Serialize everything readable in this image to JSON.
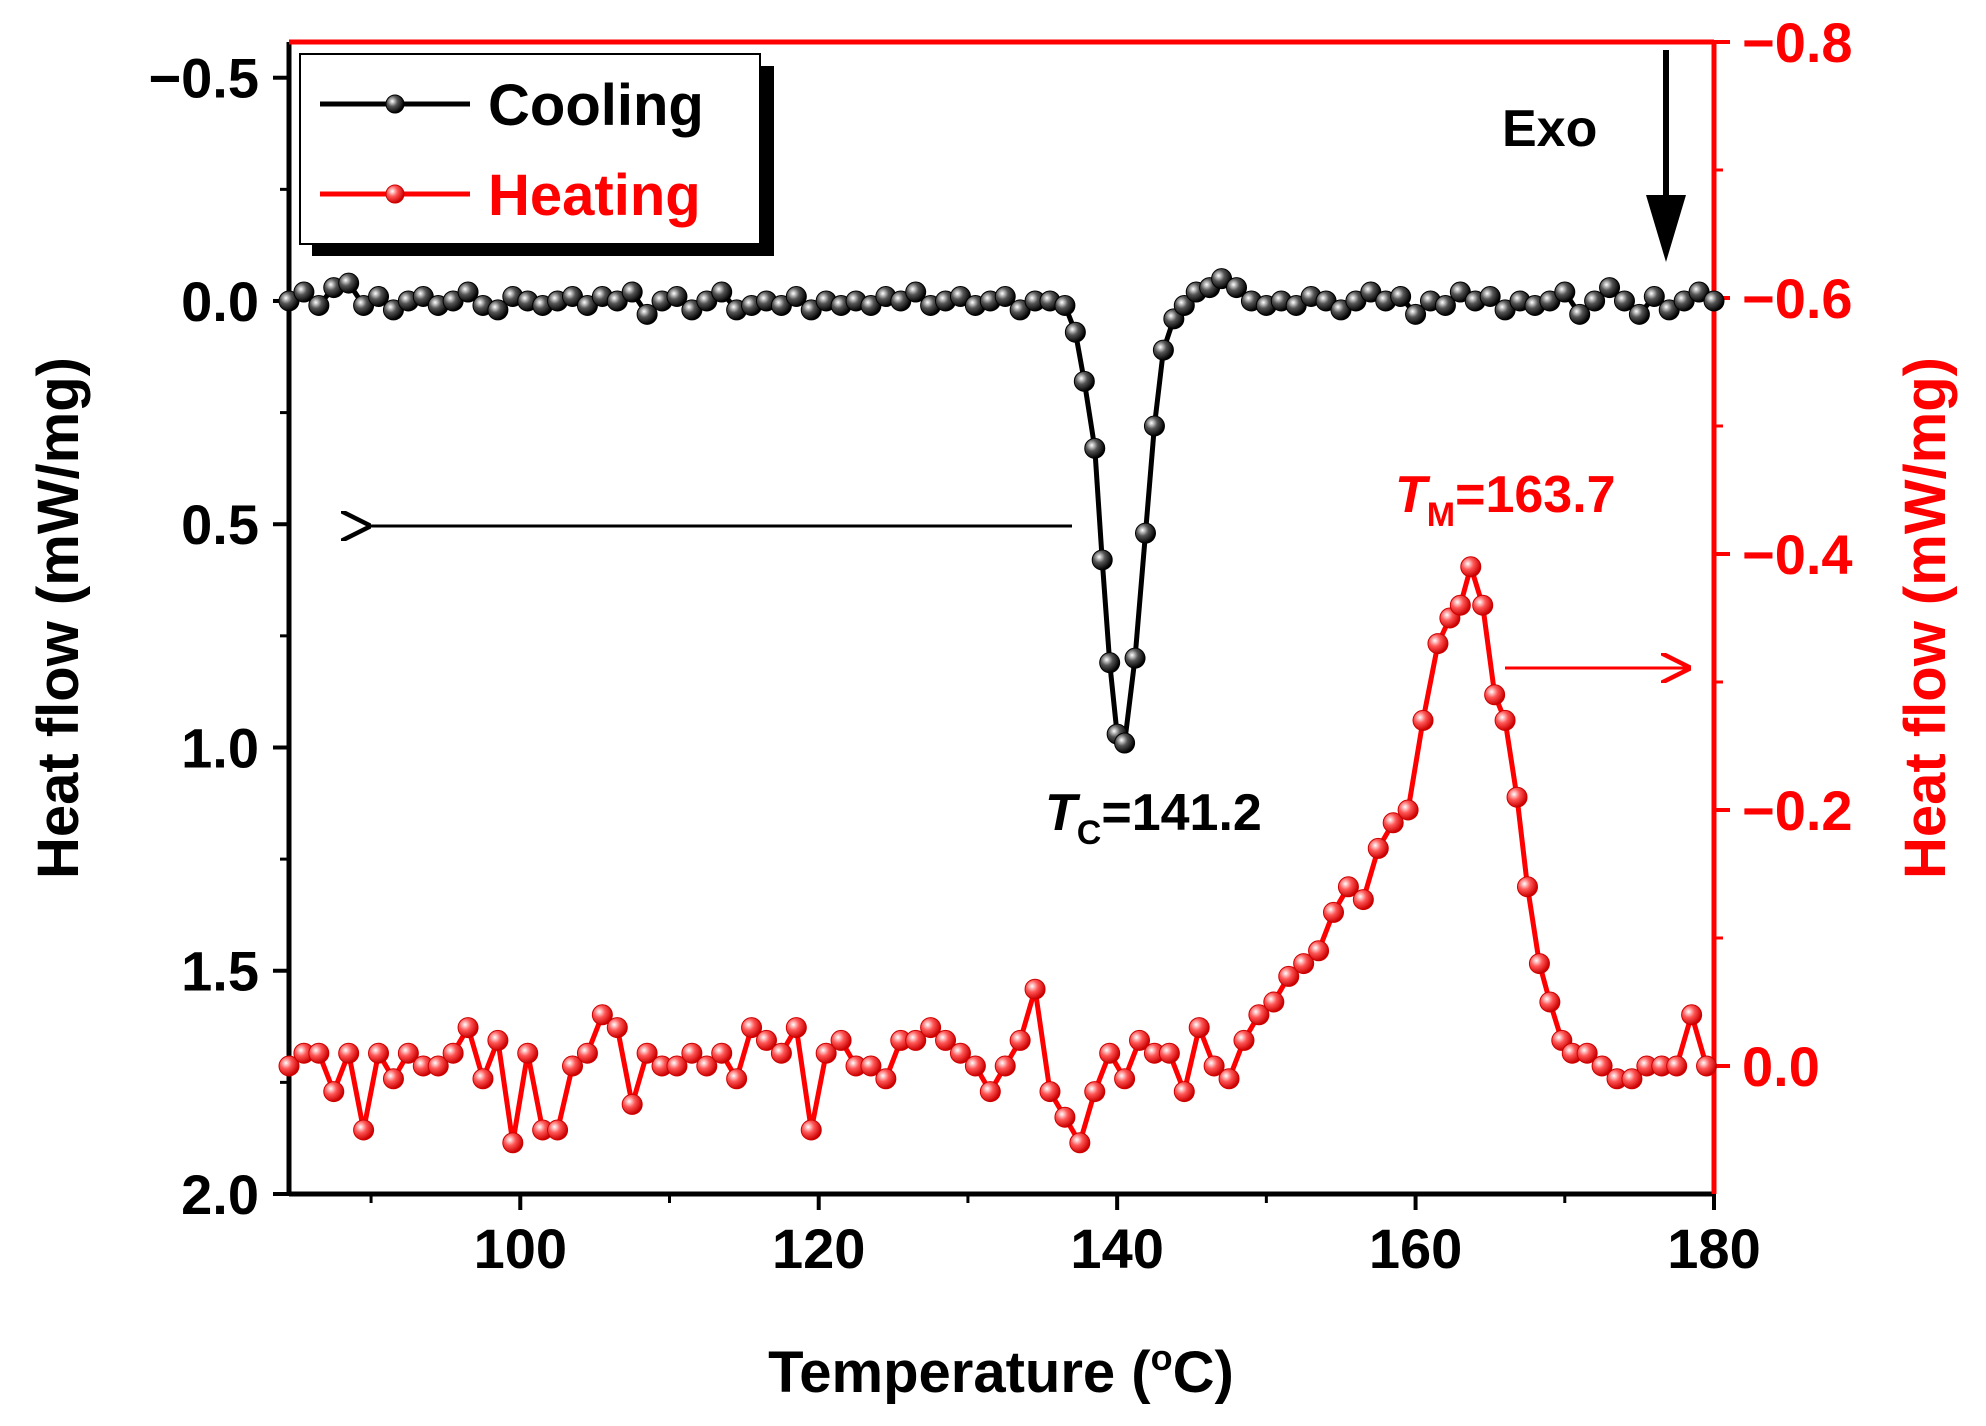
{
  "chart_data": {
    "type": "line",
    "x_axis": {
      "label": "Temperature (",
      "label_sup": "o",
      "label_end": "C)",
      "range": [
        84.5,
        180
      ],
      "ticks": [
        100,
        120,
        140,
        160,
        180
      ],
      "tick_labels": [
        "100",
        "120",
        "140",
        "160",
        "180"
      ]
    },
    "y_left": {
      "label": "Heat flow (mW/mg)",
      "range": [
        -0.58,
        2.0
      ],
      "inverted": true,
      "ticks": [
        -0.5,
        0.0,
        0.5,
        1.0,
        1.5,
        2.0
      ],
      "tick_labels": [
        "−0.5",
        "0.0",
        "0.5",
        "1.0",
        "1.5",
        "2.0"
      ],
      "color": "#000000"
    },
    "y_right": {
      "label": "Heat flow (mW/mg)",
      "range": [
        0.1,
        -0.8
      ],
      "ticks": [
        -0.8,
        -0.6,
        -0.4,
        -0.2,
        0.0
      ],
      "tick_labels": [
        "−0.8",
        "−0.6",
        "−0.4",
        "−0.2",
        "0.0"
      ],
      "color": "#ff0000"
    },
    "legend": {
      "position": "top-left",
      "entries": [
        {
          "name": "Cooling",
          "color": "#000000"
        },
        {
          "name": "Heating",
          "color": "#ff0000"
        }
      ]
    },
    "annotations": {
      "exo": "Exo",
      "tc_letter": "T",
      "tc_sub": "C",
      "tc_value": "=141.2",
      "tm_letter": "T",
      "tm_sub": "M",
      "tm_value": "=163.7"
    },
    "series": [
      {
        "name": "Cooling",
        "axis": "left",
        "color": "#000000",
        "x": [
          84.5,
          85.5,
          86.5,
          87.5,
          88.5,
          89.5,
          90.5,
          91.5,
          92.5,
          93.5,
          94.5,
          95.5,
          96.5,
          97.5,
          98.5,
          99.5,
          100.5,
          101.5,
          102.5,
          103.5,
          104.5,
          105.5,
          106.5,
          107.5,
          108.5,
          109.5,
          110.5,
          111.5,
          112.5,
          113.5,
          114.5,
          115.5,
          116.5,
          117.5,
          118.5,
          119.5,
          120.5,
          121.5,
          122.5,
          123.5,
          124.5,
          125.5,
          126.5,
          127.5,
          128.5,
          129.5,
          130.5,
          131.5,
          132.5,
          133.5,
          134.5,
          135.5,
          136.5,
          137.2,
          137.8,
          138.5,
          139.0,
          139.5,
          140.0,
          140.5,
          141.2,
          141.9,
          142.5,
          143.1,
          143.8,
          144.5,
          145.3,
          146.2,
          147.0,
          148.0,
          149.0,
          150.0,
          151.0,
          152.0,
          153.0,
          154.0,
          155.0,
          156.0,
          157.0,
          158.0,
          159.0,
          160.0,
          161.0,
          162.0,
          163.0,
          164.0,
          165.0,
          166.0,
          167.0,
          168.0,
          169.0,
          170.0,
          171.0,
          172.0,
          173.0,
          174.0,
          175.0,
          176.0,
          177.0,
          178.0,
          179.0,
          180.0
        ],
        "y": [
          0.0,
          -0.02,
          0.01,
          -0.03,
          -0.04,
          0.01,
          -0.01,
          0.02,
          0.0,
          -0.01,
          0.01,
          0.0,
          -0.02,
          0.01,
          0.02,
          -0.01,
          0.0,
          0.01,
          0.0,
          -0.01,
          0.01,
          -0.01,
          0.0,
          -0.02,
          0.03,
          0.0,
          -0.01,
          0.02,
          0.0,
          -0.02,
          0.02,
          0.01,
          0.0,
          0.01,
          -0.01,
          0.02,
          0.0,
          0.01,
          0.0,
          0.01,
          -0.01,
          0.0,
          -0.02,
          0.01,
          0.0,
          -0.01,
          0.01,
          0.0,
          -0.01,
          0.02,
          0.0,
          0.0,
          0.01,
          0.07,
          0.18,
          0.33,
          0.58,
          0.81,
          0.97,
          0.99,
          0.8,
          0.52,
          0.28,
          0.11,
          0.04,
          0.01,
          -0.02,
          -0.03,
          -0.05,
          -0.03,
          0.0,
          0.01,
          0.0,
          0.01,
          -0.01,
          0.0,
          0.02,
          0.0,
          -0.02,
          0.0,
          -0.01,
          0.03,
          0.0,
          0.01,
          -0.02,
          0.0,
          -0.01,
          0.02,
          0.0,
          0.01,
          0.0,
          -0.02,
          0.03,
          0.0,
          -0.03,
          0.0,
          0.03,
          -0.01,
          0.02,
          0.0,
          -0.02,
          0.0
        ]
      },
      {
        "name": "Heating",
        "axis": "right",
        "color": "#ff0000",
        "x": [
          84.5,
          85.5,
          86.5,
          87.5,
          88.5,
          89.5,
          90.5,
          91.5,
          92.5,
          93.5,
          94.5,
          95.5,
          96.5,
          97.5,
          98.5,
          99.5,
          100.5,
          101.5,
          102.5,
          103.5,
          104.5,
          105.5,
          106.5,
          107.5,
          108.5,
          109.5,
          110.5,
          111.5,
          112.5,
          113.5,
          114.5,
          115.5,
          116.5,
          117.5,
          118.5,
          119.5,
          120.5,
          121.5,
          122.5,
          123.5,
          124.5,
          125.5,
          126.5,
          127.5,
          128.5,
          129.5,
          130.5,
          131.5,
          132.5,
          133.5,
          134.5,
          135.5,
          136.5,
          137.5,
          138.5,
          139.5,
          140.5,
          141.5,
          142.5,
          143.5,
          144.5,
          145.5,
          146.5,
          147.5,
          148.5,
          149.5,
          150.5,
          151.5,
          152.5,
          153.5,
          154.5,
          155.5,
          156.5,
          157.5,
          158.5,
          159.5,
          160.5,
          161.5,
          162.3,
          163.0,
          163.7,
          164.5,
          165.3,
          166.0,
          166.8,
          167.5,
          168.3,
          169.0,
          169.8,
          170.5,
          171.5,
          172.5,
          173.5,
          174.5,
          175.5,
          176.5,
          177.5,
          178.5,
          179.5
        ],
        "y": [
          0.0,
          -0.01,
          -0.01,
          0.02,
          -0.01,
          0.05,
          -0.01,
          0.01,
          -0.01,
          0.0,
          0.0,
          -0.01,
          -0.03,
          0.01,
          -0.02,
          0.06,
          -0.01,
          0.05,
          0.05,
          0.0,
          -0.01,
          -0.04,
          -0.03,
          0.03,
          -0.01,
          0.0,
          0.0,
          -0.01,
          0.0,
          -0.01,
          0.01,
          -0.03,
          -0.02,
          -0.01,
          -0.03,
          0.05,
          -0.01,
          -0.02,
          0.0,
          0.0,
          0.01,
          -0.02,
          -0.02,
          -0.03,
          -0.02,
          -0.01,
          0.0,
          0.02,
          0.0,
          -0.02,
          -0.06,
          0.02,
          0.04,
          0.06,
          0.02,
          -0.01,
          0.01,
          -0.02,
          -0.01,
          -0.01,
          0.02,
          -0.03,
          0.0,
          0.01,
          -0.02,
          -0.04,
          -0.05,
          -0.07,
          -0.08,
          -0.09,
          -0.12,
          -0.14,
          -0.13,
          -0.17,
          -0.19,
          -0.2,
          -0.27,
          -0.33,
          -0.35,
          -0.36,
          -0.39,
          -0.36,
          -0.29,
          -0.27,
          -0.21,
          -0.14,
          -0.08,
          -0.05,
          -0.02,
          -0.01,
          -0.01,
          0.0,
          0.01,
          0.01,
          0.0,
          0.0,
          0.0,
          -0.04,
          0.0
        ]
      }
    ]
  }
}
